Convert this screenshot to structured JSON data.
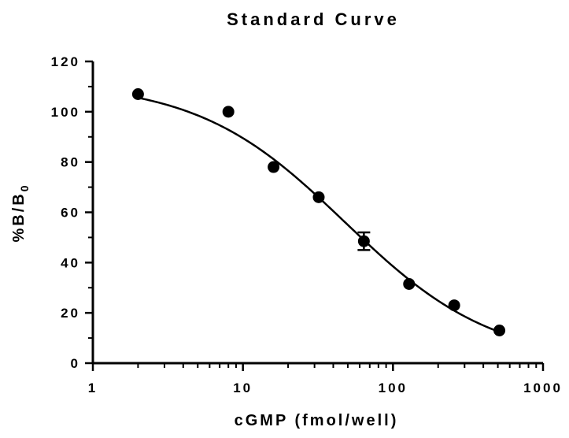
{
  "chart_data": {
    "type": "scatter",
    "title": "Standard Curve",
    "xlabel": "cGMP (fmol/well)",
    "ylabel": "%B/B",
    "ylabel_subscript": "0",
    "x_scale": "log",
    "xlim": [
      1,
      1000
    ],
    "ylim": [
      0,
      120
    ],
    "x_ticks": [
      1,
      10,
      100,
      1000
    ],
    "x_tick_labels": [
      "1",
      "10",
      "100",
      "1000"
    ],
    "y_ticks": [
      0,
      20,
      40,
      60,
      80,
      100,
      120
    ],
    "y_tick_labels": [
      "0",
      "20",
      "40",
      "60",
      "80",
      "100",
      "120"
    ],
    "grid": false,
    "legend": false,
    "points": [
      {
        "x": 2,
        "y": 107
      },
      {
        "x": 8,
        "y": 100
      },
      {
        "x": 16,
        "y": 78
      },
      {
        "x": 32,
        "y": 66
      },
      {
        "x": 64,
        "y": 48.5,
        "err": 3.5
      },
      {
        "x": 128,
        "y": 31.5
      },
      {
        "x": 256,
        "y": 23
      },
      {
        "x": 512,
        "y": 13
      }
    ],
    "fit": {
      "model": "4PL",
      "top": 112,
      "bottom": 0,
      "ec50": 48,
      "hill": 0.88,
      "x_range": [
        2,
        512
      ]
    }
  }
}
